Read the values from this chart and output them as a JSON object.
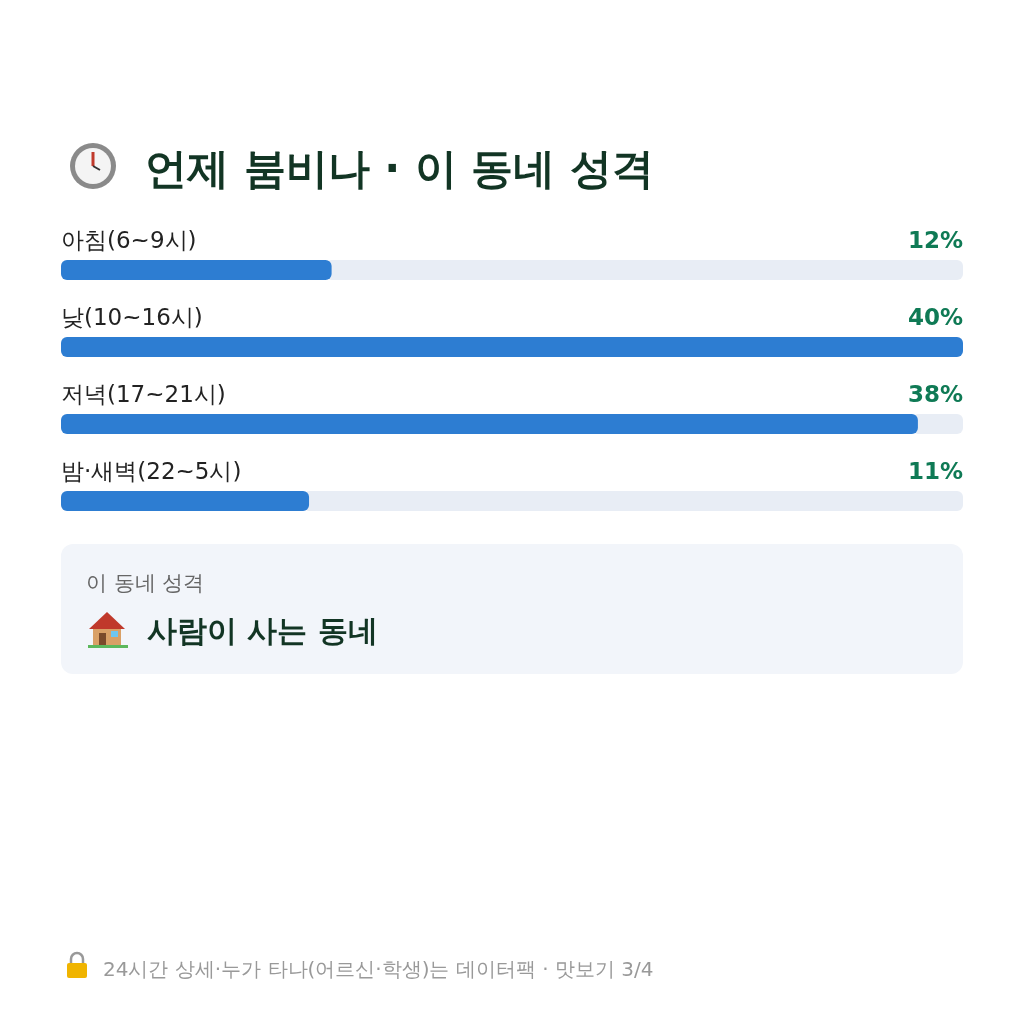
{
  "chart_data": {
    "type": "bar",
    "orientation": "horizontal",
    "title": "언제 붐비나 · 이 동네 성격",
    "categories": [
      "아침(6~9시)",
      "낮(10~16시)",
      "저녁(17~21시)",
      "밤·새벽(22~5시)"
    ],
    "values": [
      12,
      40,
      38,
      11
    ],
    "value_labels": [
      "12%",
      "40%",
      "38%",
      "11%"
    ],
    "color": "#2d7dd2",
    "annotations": [
      "이 동네 성격",
      "사람이 사는 동네",
      "24시간 상세·누가 타나(어르신·학생)는 데이터팩 · 맛보기 3/4"
    ]
  }
}
